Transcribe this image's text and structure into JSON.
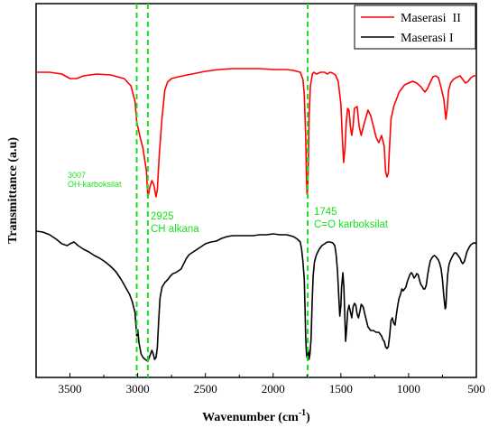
{
  "chart_data": {
    "type": "line",
    "title": "",
    "xlabel": "Wavenumber (cm",
    "xlabel_superscript": "-1",
    "xlabel_suffix": ")",
    "ylabel": "Transmittance (a.u)",
    "xlim": [
      3750,
      500
    ],
    "x_reversed": true,
    "xticks": [
      3500,
      3000,
      2500,
      2000,
      1500,
      1000,
      500
    ],
    "yticks_shown": false,
    "grid": false,
    "legend_position": "top-right",
    "colors": {
      "Maserasi  II": "#ff0000",
      "Maserasi I": "#000000",
      "annotation": "#19e01e"
    },
    "reference_lines": [
      3007,
      2925,
      1745
    ],
    "annotations": [
      {
        "lines": [
          "3007",
          "OH-karboksilat"
        ],
        "x": 3007
      },
      {
        "lines": [
          "2925",
          "CH alkana"
        ],
        "x": 2925
      },
      {
        "lines": [
          "1745",
          "C=O karboksilat"
        ],
        "x": 1745
      }
    ],
    "series": [
      {
        "name": "Maserasi  II",
        "color": "#ff0000",
        "points": [
          [
            3750,
            80
          ],
          [
            3650,
            80
          ],
          [
            3560,
            82
          ],
          [
            3500,
            87
          ],
          [
            3450,
            87
          ],
          [
            3400,
            84
          ],
          [
            3300,
            82
          ],
          [
            3200,
            83
          ],
          [
            3100,
            87
          ],
          [
            3050,
            95
          ],
          [
            3020,
            112
          ],
          [
            3007,
            135
          ],
          [
            2985,
            150
          ],
          [
            2960,
            165
          ],
          [
            2935,
            190
          ],
          [
            2925,
            219
          ],
          [
            2910,
            207
          ],
          [
            2895,
            200
          ],
          [
            2880,
            205
          ],
          [
            2865,
            218
          ],
          [
            2855,
            210
          ],
          [
            2840,
            170
          ],
          [
            2820,
            130
          ],
          [
            2800,
            100
          ],
          [
            2780,
            91
          ],
          [
            2750,
            87
          ],
          [
            2700,
            85
          ],
          [
            2600,
            82
          ],
          [
            2500,
            79
          ],
          [
            2400,
            77
          ],
          [
            2300,
            76
          ],
          [
            2200,
            76
          ],
          [
            2100,
            76
          ],
          [
            2000,
            77
          ],
          [
            1900,
            77
          ],
          [
            1850,
            78
          ],
          [
            1800,
            80
          ],
          [
            1780,
            88
          ],
          [
            1770,
            105
          ],
          [
            1760,
            150
          ],
          [
            1755,
            190
          ],
          [
            1750,
            215
          ],
          [
            1745,
            209
          ],
          [
            1740,
            180
          ],
          [
            1735,
            130
          ],
          [
            1725,
            95
          ],
          [
            1710,
            82
          ],
          [
            1700,
            80
          ],
          [
            1680,
            82
          ],
          [
            1650,
            80
          ],
          [
            1620,
            80
          ],
          [
            1600,
            82
          ],
          [
            1580,
            80
          ],
          [
            1560,
            81
          ],
          [
            1540,
            83
          ],
          [
            1520,
            90
          ],
          [
            1500,
            115
          ],
          [
            1490,
            150
          ],
          [
            1480,
            180
          ],
          [
            1470,
            165
          ],
          [
            1460,
            135
          ],
          [
            1450,
            120
          ],
          [
            1440,
            122
          ],
          [
            1430,
            140
          ],
          [
            1420,
            150
          ],
          [
            1410,
            140
          ],
          [
            1400,
            120
          ],
          [
            1380,
            118
          ],
          [
            1365,
            140
          ],
          [
            1350,
            150
          ],
          [
            1330,
            138
          ],
          [
            1300,
            122
          ],
          [
            1280,
            128
          ],
          [
            1260,
            140
          ],
          [
            1240,
            152
          ],
          [
            1220,
            158
          ],
          [
            1200,
            150
          ],
          [
            1180,
            162
          ],
          [
            1170,
            190
          ],
          [
            1160,
            196
          ],
          [
            1150,
            192
          ],
          [
            1140,
            160
          ],
          [
            1130,
            132
          ],
          [
            1110,
            118
          ],
          [
            1090,
            110
          ],
          [
            1070,
            102
          ],
          [
            1050,
            98
          ],
          [
            1030,
            94
          ],
          [
            1000,
            92
          ],
          [
            970,
            90
          ],
          [
            940,
            92
          ],
          [
            910,
            96
          ],
          [
            880,
            102
          ],
          [
            860,
            98
          ],
          [
            840,
            91
          ],
          [
            820,
            85
          ],
          [
            800,
            84
          ],
          [
            780,
            86
          ],
          [
            760,
            97
          ],
          [
            740,
            110
          ],
          [
            725,
            132
          ],
          [
            715,
            120
          ],
          [
            705,
            100
          ],
          [
            690,
            92
          ],
          [
            670,
            88
          ],
          [
            650,
            86
          ],
          [
            620,
            84
          ],
          [
            600,
            88
          ],
          [
            580,
            92
          ],
          [
            560,
            90
          ],
          [
            540,
            86
          ],
          [
            520,
            84
          ],
          [
            500,
            84
          ]
        ]
      },
      {
        "name": "Maserasi I",
        "color": "#000000",
        "points": [
          [
            3750,
            256
          ],
          [
            3700,
            257
          ],
          [
            3650,
            260
          ],
          [
            3600,
            265
          ],
          [
            3560,
            270
          ],
          [
            3520,
            272
          ],
          [
            3500,
            270
          ],
          [
            3470,
            268
          ],
          [
            3440,
            272
          ],
          [
            3400,
            276
          ],
          [
            3360,
            279
          ],
          [
            3320,
            283
          ],
          [
            3280,
            286
          ],
          [
            3240,
            290
          ],
          [
            3200,
            295
          ],
          [
            3160,
            301
          ],
          [
            3120,
            310
          ],
          [
            3090,
            318
          ],
          [
            3060,
            326
          ],
          [
            3040,
            334
          ],
          [
            3020,
            346
          ],
          [
            3007,
            372
          ],
          [
            3000,
            365
          ],
          [
            2990,
            380
          ],
          [
            2975,
            392
          ],
          [
            2960,
            396
          ],
          [
            2945,
            398
          ],
          [
            2935,
            399
          ],
          [
            2925,
            400
          ],
          [
            2915,
            396
          ],
          [
            2905,
            392
          ],
          [
            2895,
            388
          ],
          [
            2885,
            392
          ],
          [
            2875,
            398
          ],
          [
            2865,
            396
          ],
          [
            2855,
            385
          ],
          [
            2845,
            355
          ],
          [
            2835,
            330
          ],
          [
            2820,
            318
          ],
          [
            2800,
            313
          ],
          [
            2780,
            310
          ],
          [
            2760,
            306
          ],
          [
            2740,
            303
          ],
          [
            2720,
            302
          ],
          [
            2700,
            300
          ],
          [
            2680,
            298
          ],
          [
            2660,
            292
          ],
          [
            2640,
            286
          ],
          [
            2620,
            282
          ],
          [
            2600,
            280
          ],
          [
            2570,
            277
          ],
          [
            2540,
            274
          ],
          [
            2500,
            270
          ],
          [
            2460,
            268
          ],
          [
            2420,
            267
          ],
          [
            2380,
            264
          ],
          [
            2340,
            262
          ],
          [
            2300,
            261
          ],
          [
            2250,
            261
          ],
          [
            2200,
            261
          ],
          [
            2150,
            261
          ],
          [
            2100,
            260
          ],
          [
            2050,
            260
          ],
          [
            2000,
            259
          ],
          [
            1950,
            260
          ],
          [
            1900,
            260
          ],
          [
            1850,
            262
          ],
          [
            1820,
            265
          ],
          [
            1800,
            268
          ],
          [
            1790,
            276
          ],
          [
            1780,
            290
          ],
          [
            1770,
            310
          ],
          [
            1765,
            340
          ],
          [
            1760,
            372
          ],
          [
            1755,
            390
          ],
          [
            1750,
            396
          ],
          [
            1745,
            395
          ],
          [
            1740,
            388
          ],
          [
            1735,
            398
          ],
          [
            1728,
            392
          ],
          [
            1720,
            375
          ],
          [
            1712,
            335
          ],
          [
            1705,
            306
          ],
          [
            1695,
            290
          ],
          [
            1680,
            282
          ],
          [
            1660,
            276
          ],
          [
            1640,
            272
          ],
          [
            1620,
            270
          ],
          [
            1600,
            268
          ],
          [
            1580,
            268
          ],
          [
            1560,
            269
          ],
          [
            1545,
            272
          ],
          [
            1535,
            282
          ],
          [
            1525,
            300
          ],
          [
            1515,
            330
          ],
          [
            1508,
            350
          ],
          [
            1500,
            338
          ],
          [
            1495,
            318
          ],
          [
            1485,
            302
          ],
          [
            1478,
            318
          ],
          [
            1470,
            355
          ],
          [
            1465,
            378
          ],
          [
            1458,
            365
          ],
          [
            1450,
            345
          ],
          [
            1440,
            338
          ],
          [
            1430,
            345
          ],
          [
            1420,
            352
          ],
          [
            1410,
            340
          ],
          [
            1400,
            336
          ],
          [
            1390,
            338
          ],
          [
            1380,
            348
          ],
          [
            1370,
            352
          ],
          [
            1360,
            345
          ],
          [
            1350,
            337
          ],
          [
            1335,
            340
          ],
          [
            1320,
            350
          ],
          [
            1300,
            362
          ],
          [
            1280,
            366
          ],
          [
            1260,
            366
          ],
          [
            1240,
            368
          ],
          [
            1220,
            368
          ],
          [
            1200,
            372
          ],
          [
            1190,
            376
          ],
          [
            1180,
            378
          ],
          [
            1170,
            384
          ],
          [
            1160,
            386
          ],
          [
            1150,
            384
          ],
          [
            1140,
            372
          ],
          [
            1130,
            355
          ],
          [
            1120,
            352
          ],
          [
            1110,
            358
          ],
          [
            1100,
            360
          ],
          [
            1090,
            348
          ],
          [
            1080,
            338
          ],
          [
            1070,
            330
          ],
          [
            1060,
            326
          ],
          [
            1050,
            320
          ],
          [
            1040,
            322
          ],
          [
            1030,
            320
          ],
          [
            1020,
            318
          ],
          [
            1010,
            312
          ],
          [
            1000,
            308
          ],
          [
            990,
            304
          ],
          [
            980,
            302
          ],
          [
            970,
            304
          ],
          [
            960,
            308
          ],
          [
            950,
            306
          ],
          [
            940,
            303
          ],
          [
            930,
            304
          ],
          [
            920,
            310
          ],
          [
            910,
            315
          ],
          [
            900,
            317
          ],
          [
            890,
            320
          ],
          [
            880,
            320
          ],
          [
            870,
            316
          ],
          [
            860,
            305
          ],
          [
            850,
            296
          ],
          [
            840,
            289
          ],
          [
            830,
            286
          ],
          [
            820,
            284
          ],
          [
            810,
            283
          ],
          [
            800,
            284
          ],
          [
            790,
            286
          ],
          [
            780,
            288
          ],
          [
            770,
            292
          ],
          [
            760,
            298
          ],
          [
            750,
            310
          ],
          [
            740,
            328
          ],
          [
            730,
            342
          ],
          [
            725,
            340
          ],
          [
            718,
            318
          ],
          [
            712,
            305
          ],
          [
            705,
            296
          ],
          [
            700,
            292
          ],
          [
            690,
            288
          ],
          [
            680,
            285
          ],
          [
            670,
            282
          ],
          [
            660,
            280
          ],
          [
            650,
            280
          ],
          [
            640,
            282
          ],
          [
            630,
            284
          ],
          [
            620,
            286
          ],
          [
            610,
            290
          ],
          [
            600,
            292
          ],
          [
            590,
            290
          ],
          [
            580,
            285
          ],
          [
            570,
            279
          ],
          [
            560,
            276
          ],
          [
            550,
            273
          ],
          [
            540,
            271
          ],
          [
            530,
            270
          ],
          [
            520,
            269
          ],
          [
            510,
            269
          ],
          [
            500,
            270
          ]
        ]
      }
    ]
  }
}
